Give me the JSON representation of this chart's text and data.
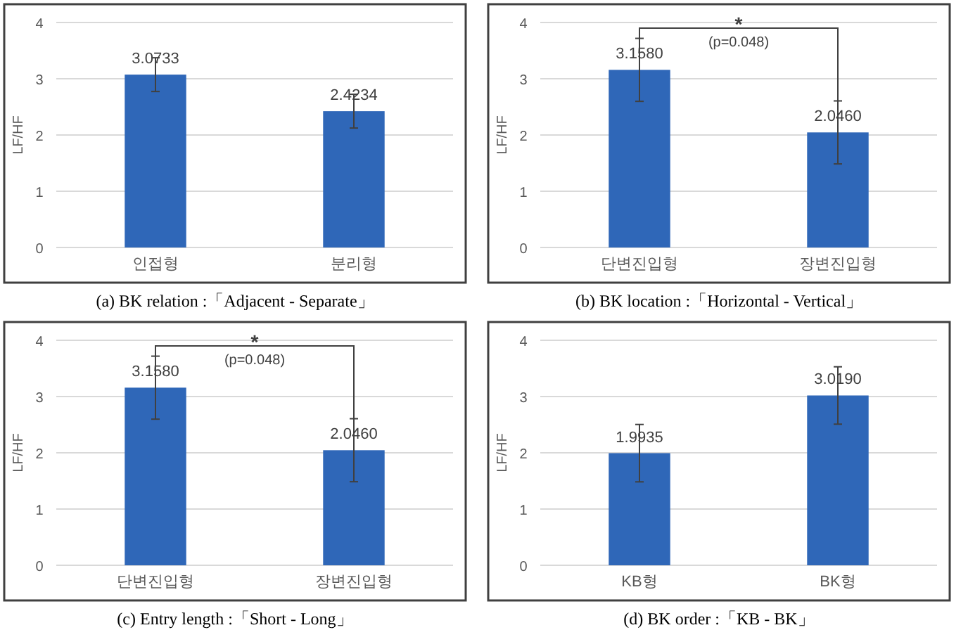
{
  "chart_data": [
    {
      "type": "bar",
      "title": "(a)  BK  relation  :「Adjacent  -  Separate」",
      "ylabel": "LF/HF",
      "categories": [
        "인접형",
        "분리형"
      ],
      "values": [
        3.0733,
        2.4234
      ],
      "value_labels": [
        "3.0733",
        "2.4234"
      ],
      "errors": [
        0.3,
        0.3
      ],
      "color": "#2f67b8",
      "ylim": [
        0,
        4
      ],
      "yticks": [
        0,
        1,
        2,
        3,
        4
      ],
      "grid": "y"
    },
    {
      "type": "bar",
      "title": "(b)  BK  location  :「Horizontal  -  Vertical」",
      "ylabel": "LF/HF",
      "categories": [
        "단변진입형",
        "장변진입형"
      ],
      "values": [
        3.158,
        2.046
      ],
      "value_labels": [
        "3.1580",
        "2.0460"
      ],
      "errors": [
        0.56,
        0.56
      ],
      "color": "#2f67b8",
      "ylim": [
        0,
        4
      ],
      "yticks": [
        0,
        1,
        2,
        3,
        4
      ],
      "grid": "y",
      "annotations": [
        "*",
        "(p=0.048)"
      ]
    },
    {
      "type": "bar",
      "title": "(c)  Entry  length  :「Short  -  Long」",
      "ylabel": "LF/HF",
      "categories": [
        "단변진입형",
        "장변진입형"
      ],
      "values": [
        3.158,
        2.046
      ],
      "value_labels": [
        "3.1580",
        "2.0460"
      ],
      "errors": [
        0.56,
        0.56
      ],
      "color": "#2f67b8",
      "ylim": [
        0,
        4
      ],
      "yticks": [
        0,
        1,
        2,
        3,
        4
      ],
      "grid": "y",
      "annotations": [
        "*",
        "(p=0.048)"
      ]
    },
    {
      "type": "bar",
      "title": "(d)  BK  order  :「KB  -  BK」",
      "ylabel": "LF/HF",
      "categories": [
        "KB형",
        "BK형"
      ],
      "values": [
        1.9935,
        3.019
      ],
      "value_labels": [
        "1.9935",
        "3.0190"
      ],
      "errors": [
        0.51,
        0.51
      ],
      "color": "#2f67b8",
      "ylim": [
        0,
        4
      ],
      "yticks": [
        0,
        1,
        2,
        3,
        4
      ],
      "grid": "y"
    }
  ]
}
